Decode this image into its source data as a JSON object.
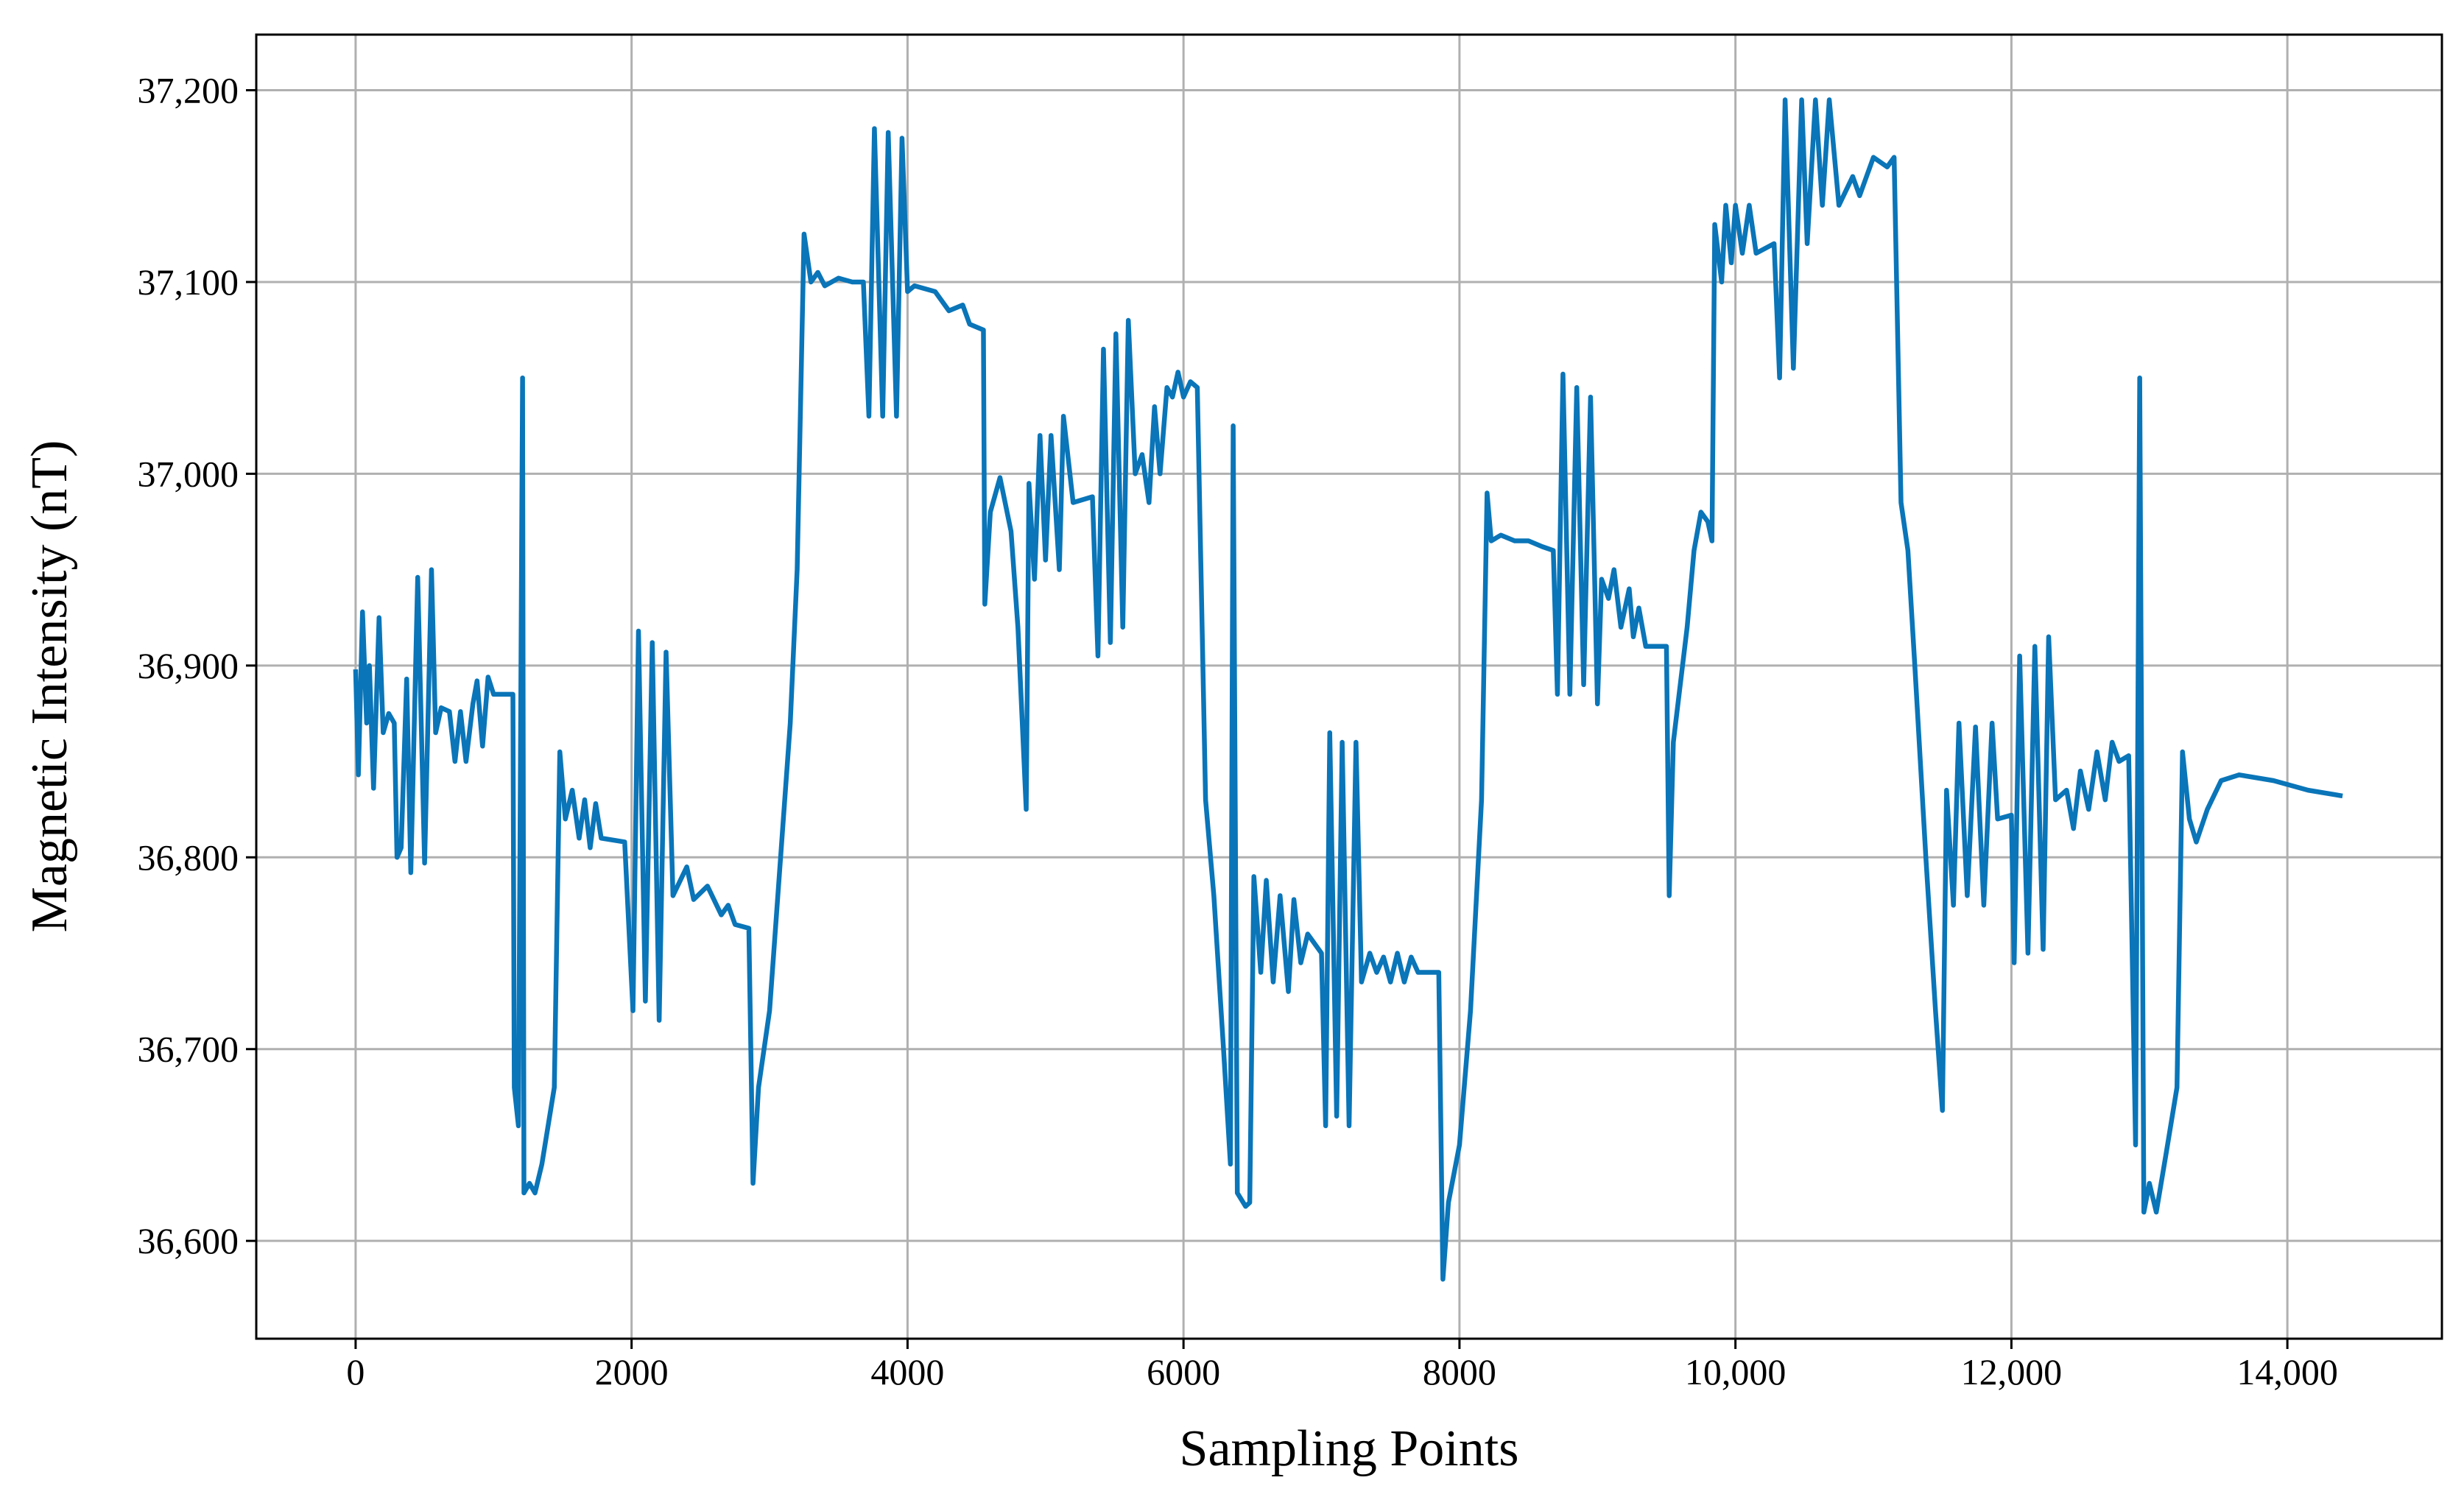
{
  "chart_data": {
    "type": "line",
    "xlabel": "Sampling Points",
    "ylabel": "Magnetic Intensity (nT)",
    "color": "#0a75b8",
    "grid": true,
    "xlim": [
      -720,
      15120
    ],
    "ylim": [
      36549,
      37229
    ],
    "xticks": [
      0,
      2000,
      4000,
      6000,
      8000,
      {
        "value": 10000,
        "label": "10,000"
      },
      {
        "value": 12000,
        "label": "12,000"
      },
      {
        "value": 14000,
        "label": "14,000"
      }
    ],
    "yticks": [
      {
        "value": 36600,
        "label": "36,600"
      },
      {
        "value": 36700,
        "label": "36,700"
      },
      {
        "value": 36800,
        "label": "36,800"
      },
      {
        "value": 36900,
        "label": "36,900"
      },
      {
        "value": 37000,
        "label": "37,000"
      },
      {
        "value": 37100,
        "label": "37,100"
      },
      {
        "value": 37200,
        "label": "37,200"
      }
    ],
    "x": [
      0,
      20,
      50,
      80,
      100,
      130,
      170,
      200,
      240,
      280,
      300,
      330,
      370,
      400,
      450,
      500,
      550,
      580,
      620,
      680,
      720,
      760,
      800,
      850,
      880,
      920,
      960,
      1000,
      1140,
      1150,
      1180,
      1210,
      1220,
      1260,
      1300,
      1350,
      1440,
      1480,
      1520,
      1570,
      1620,
      1660,
      1700,
      1740,
      1780,
      1950,
      2010,
      2050,
      2100,
      2150,
      2200,
      2250,
      2300,
      2400,
      2450,
      2550,
      2650,
      2700,
      2750,
      2850,
      2880,
      2920,
      3000,
      3100,
      3150,
      3200,
      3250,
      3300,
      3350,
      3400,
      3500,
      3600,
      3680,
      3720,
      3760,
      3820,
      3860,
      3920,
      3960,
      4000,
      4050,
      4200,
      4300,
      4400,
      4450,
      4550,
      4560,
      4600,
      4670,
      4750,
      4800,
      4860,
      4880,
      4920,
      4960,
      5000,
      5040,
      5100,
      5130,
      5200,
      5340,
      5380,
      5420,
      5470,
      5510,
      5560,
      5600,
      5650,
      5700,
      5750,
      5790,
      5830,
      5880,
      5920,
      5960,
      6000,
      6050,
      6100,
      6160,
      6220,
      6290,
      6340,
      6360,
      6390,
      6450,
      6480,
      6510,
      6560,
      6600,
      6650,
      6700,
      6760,
      6800,
      6850,
      6900,
      7000,
      7030,
      7060,
      7110,
      7150,
      7200,
      7250,
      7290,
      7350,
      7400,
      7450,
      7500,
      7550,
      7600,
      7650,
      7700,
      7850,
      7880,
      7920,
      8000,
      8080,
      8160,
      8200,
      8230,
      8300,
      8400,
      8500,
      8600,
      8680,
      8710,
      8750,
      8800,
      8850,
      8900,
      8950,
      9000,
      9030,
      9080,
      9120,
      9170,
      9230,
      9260,
      9300,
      9350,
      9500,
      9520,
      9550,
      9650,
      9700,
      9750,
      9800,
      9830,
      9850,
      9900,
      9930,
      9970,
      10000,
      10050,
      10100,
      10150,
      10280,
      10320,
      10360,
      10420,
      10480,
      10520,
      10580,
      10630,
      10680,
      10750,
      10850,
      10900,
      11000,
      11100,
      11150,
      11200,
      11250,
      11300,
      11380,
      11450,
      11500,
      11530,
      11580,
      11620,
      11680,
      11740,
      11800,
      11860,
      11900,
      12000,
      12020,
      12060,
      12120,
      12170,
      12230,
      12270,
      12320,
      12400,
      12450,
      12500,
      12560,
      12620,
      12680,
      12730,
      12780,
      12850,
      12900,
      12930,
      12960,
      13000,
      13050,
      13120,
      13200,
      13240,
      13290,
      13340,
      13420,
      13520,
      13650,
      13900,
      14150,
      14400
    ],
    "values": [
      36898,
      36843,
      36928,
      36870,
      36900,
      36836,
      36925,
      36865,
      36875,
      36870,
      36800,
      36805,
      36893,
      36792,
      36946,
      36797,
      36950,
      36865,
      36878,
      36876,
      36850,
      36876,
      36850,
      36880,
      36892,
      36858,
      36894,
      36885,
      36885,
      36680,
      36660,
      37050,
      36625,
      36630,
      36625,
      36640,
      36680,
      36855,
      36820,
      36835,
      36810,
      36830,
      36805,
      36828,
      36810,
      36808,
      36720,
      36918,
      36725,
      36912,
      36715,
      36907,
      36780,
      36795,
      36778,
      36785,
      36770,
      36775,
      36765,
      36763,
      36630,
      36680,
      36720,
      36820,
      36870,
      36950,
      37125,
      37100,
      37105,
      37098,
      37102,
      37100,
      37100,
      37030,
      37180,
      37030,
      37178,
      37030,
      37175,
      37095,
      37098,
      37095,
      37085,
      37088,
      37078,
      37075,
      36932,
      36980,
      36998,
      36970,
      36920,
      36825,
      36995,
      36945,
      37020,
      36955,
      37020,
      36950,
      37030,
      36985,
      36988,
      36905,
      37065,
      36912,
      37073,
      36920,
      37080,
      37000,
      37010,
      36985,
      37035,
      37000,
      37045,
      37040,
      37053,
      37040,
      37048,
      37045,
      36830,
      36780,
      36700,
      36640,
      37025,
      36625,
      36618,
      36620,
      36790,
      36740,
      36788,
      36735,
      36780,
      36730,
      36778,
      36745,
      36760,
      36750,
      36660,
      36865,
      36665,
      36860,
      36660,
      36860,
      36735,
      36750,
      36740,
      36748,
      36735,
      36750,
      36735,
      36748,
      36740,
      36740,
      36580,
      36620,
      36650,
      36720,
      36830,
      36990,
      36965,
      36968,
      36965,
      36965,
      36962,
      36960,
      36885,
      37052,
      36885,
      37045,
      36890,
      37040,
      36880,
      36945,
      36935,
      36950,
      36920,
      36940,
      36915,
      36930,
      36910,
      36910,
      36780,
      36860,
      36920,
      36960,
      36980,
      36975,
      36965,
      37130,
      37100,
      37140,
      37110,
      37140,
      37115,
      37140,
      37115,
      37120,
      37050,
      37195,
      37055,
      37195,
      37120,
      37195,
      37140,
      37195,
      37140,
      37155,
      37145,
      37165,
      37160,
      37165,
      36985,
      36960,
      36900,
      36800,
      36720,
      36668,
      36835,
      36775,
      36870,
      36780,
      36868,
      36775,
      36870,
      36820,
      36822,
      36745,
      36905,
      36750,
      36910,
      36752,
      36915,
      36830,
      36835,
      36815,
      36845,
      36825,
      36855,
      36830,
      36860,
      36850,
      36853,
      36650,
      37050,
      36615,
      36630,
      36615,
      36645,
      36680,
      36855,
      36820,
      36808,
      36825,
      36840,
      36843,
      36840,
      36835,
      36832
    ]
  }
}
